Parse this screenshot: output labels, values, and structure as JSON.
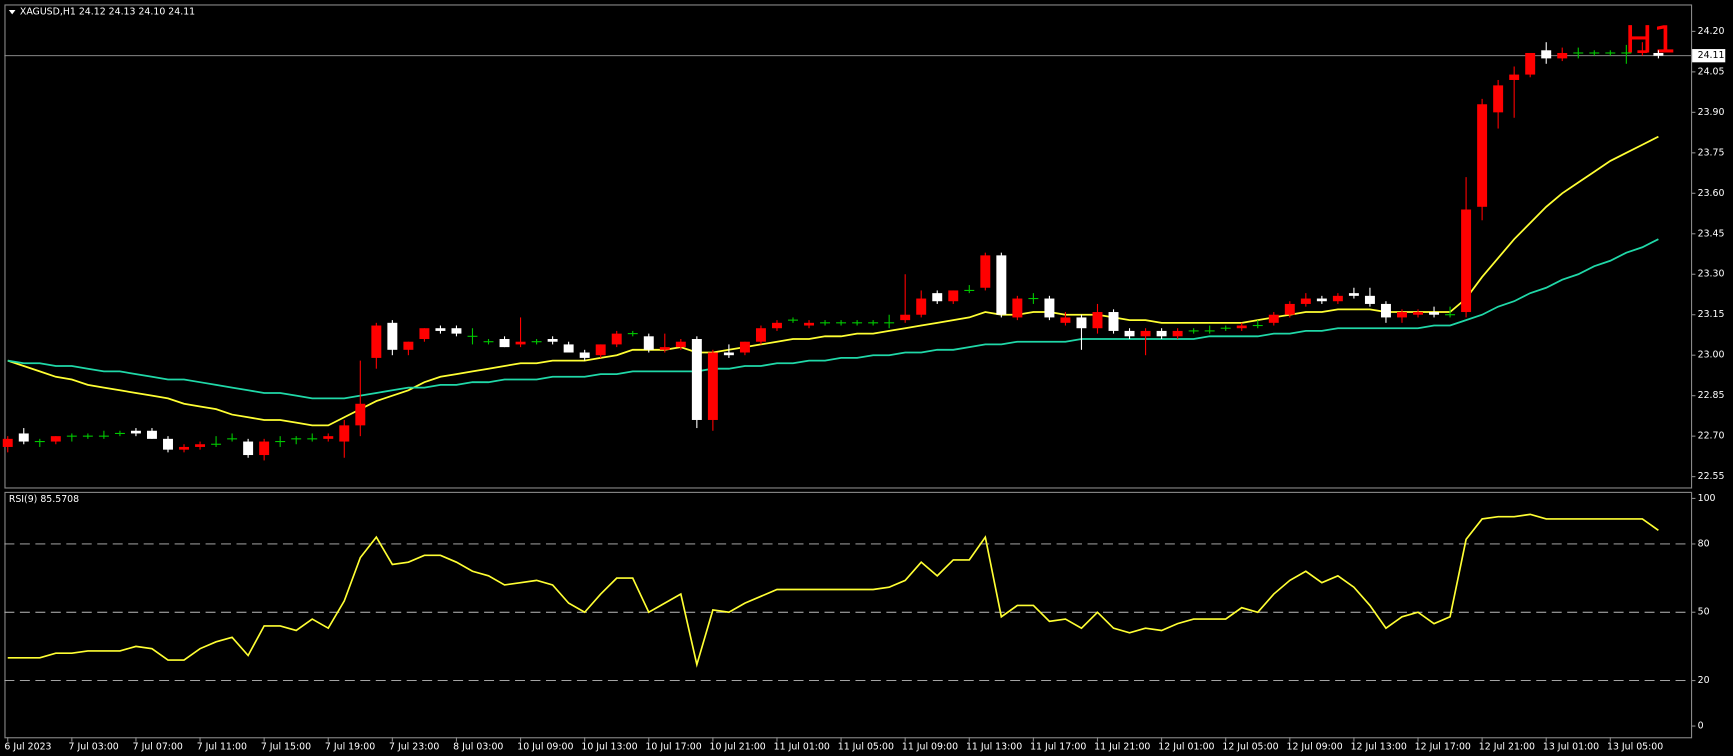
{
  "chart_data": [
    {
      "type": "candlestick",
      "title": "XAGUSD,H1  24.12 24.13 24.10 24.11",
      "annotation": "H1",
      "last_price": 24.11,
      "up_color": "#ff0000",
      "down_color": "#ffffff",
      "doji_color": "#00c800",
      "categories": [
        "6 Jul 2023",
        null,
        null,
        null,
        "7 Jul 03:00",
        null,
        null,
        null,
        "7 Jul 07:00",
        null,
        null,
        null,
        "7 Jul 11:00",
        null,
        null,
        null,
        "7 Jul 15:00",
        null,
        null,
        null,
        "7 Jul 19:00",
        null,
        null,
        null,
        "7 Jul 23:00",
        null,
        null,
        null,
        "8 Jul 03:00",
        null,
        null,
        null,
        "10 Jul 09:00",
        null,
        null,
        null,
        "10 Jul 13:00",
        null,
        null,
        null,
        "10 Jul 17:00",
        null,
        null,
        null,
        "10 Jul 21:00",
        null,
        null,
        null,
        "11 Jul 01:00",
        null,
        null,
        null,
        "11 Jul 05:00",
        null,
        null,
        null,
        "11 Jul 09:00",
        null,
        null,
        null,
        "11 Jul 13:00",
        null,
        null,
        null,
        "11 Jul 17:00",
        null,
        null,
        null,
        "11 Jul 21:00",
        null,
        null,
        null,
        "12 Jul 01:00",
        null,
        null,
        null,
        "12 Jul 05:00",
        null,
        null,
        null,
        "12 Jul 09:00",
        null,
        null,
        null,
        "12 Jul 13:00",
        null,
        null,
        null,
        "12 Jul 17:00",
        null,
        null,
        null,
        "12 Jul 21:00",
        null,
        null,
        null,
        "13 Jul 01:00",
        null,
        null,
        null,
        "13 Jul 05:00",
        null,
        null,
        null
      ],
      "open": [
        22.66,
        22.71,
        22.68,
        22.68,
        22.7,
        22.7,
        22.7,
        22.71,
        22.72,
        22.72,
        22.69,
        22.65,
        22.66,
        22.67,
        22.69,
        22.68,
        22.63,
        22.68,
        22.69,
        22.69,
        22.69,
        22.68,
        22.74,
        22.99,
        23.12,
        23.02,
        23.06,
        23.1,
        23.1,
        23.07,
        23.05,
        23.06,
        23.04,
        23.05,
        23.06,
        23.04,
        23.01,
        23.0,
        23.04,
        23.08,
        23.07,
        23.02,
        23.03,
        23.06,
        22.76,
        23.01,
        23.01,
        23.05,
        23.1,
        23.13,
        23.11,
        23.12,
        23.12,
        23.12,
        23.12,
        23.12,
        23.13,
        23.15,
        23.23,
        23.2,
        23.24,
        23.25,
        23.37,
        23.14,
        23.21,
        23.21,
        23.12,
        23.14,
        23.1,
        23.16,
        23.09,
        23.07,
        23.09,
        23.07,
        23.09,
        23.09,
        23.1,
        23.1,
        23.11,
        23.12,
        23.15,
        23.19,
        23.21,
        23.2,
        23.23,
        23.22,
        23.19,
        23.14,
        23.15,
        23.16,
        23.15,
        23.16,
        23.55,
        23.9,
        24.02,
        24.04,
        24.13,
        24.1,
        24.12,
        24.12,
        24.12,
        24.12,
        24.12,
        24.12
      ],
      "high": [
        22.7,
        22.73,
        22.69,
        22.7,
        22.71,
        22.71,
        22.72,
        22.72,
        22.73,
        22.73,
        22.7,
        22.67,
        22.68,
        22.7,
        22.71,
        22.69,
        22.69,
        22.7,
        22.7,
        22.71,
        22.71,
        22.76,
        22.98,
        23.12,
        23.13,
        23.05,
        23.1,
        23.11,
        23.11,
        23.1,
        23.06,
        23.07,
        23.14,
        23.06,
        23.07,
        23.05,
        23.02,
        23.04,
        23.09,
        23.09,
        23.08,
        23.08,
        23.06,
        23.07,
        23.02,
        23.04,
        23.05,
        23.11,
        23.13,
        23.14,
        23.13,
        23.13,
        23.13,
        23.13,
        23.13,
        23.15,
        23.3,
        23.24,
        23.24,
        23.24,
        23.26,
        23.38,
        23.38,
        23.22,
        23.23,
        23.22,
        23.16,
        23.15,
        23.19,
        23.17,
        23.1,
        23.1,
        23.1,
        23.1,
        23.1,
        23.11,
        23.11,
        23.12,
        23.13,
        23.16,
        23.2,
        23.23,
        23.22,
        23.23,
        23.25,
        23.25,
        23.2,
        23.17,
        23.17,
        23.18,
        23.18,
        23.66,
        23.95,
        24.02,
        24.07,
        24.12,
        24.16,
        24.14,
        24.14,
        24.13,
        24.13,
        24.15,
        24.16,
        24.13
      ],
      "low": [
        22.64,
        22.67,
        22.66,
        22.67,
        22.68,
        22.69,
        22.69,
        22.7,
        22.7,
        22.69,
        22.64,
        22.64,
        22.65,
        22.66,
        22.68,
        22.62,
        22.61,
        22.66,
        22.67,
        22.68,
        22.68,
        22.62,
        22.7,
        22.95,
        23.0,
        23.0,
        23.05,
        23.08,
        23.07,
        23.04,
        23.04,
        23.03,
        23.03,
        23.04,
        23.04,
        23.01,
        22.98,
        22.99,
        23.03,
        23.07,
        23.01,
        23.01,
        23.02,
        22.73,
        22.72,
        22.99,
        23.0,
        23.04,
        23.09,
        23.12,
        23.1,
        23.11,
        23.11,
        23.11,
        23.11,
        23.1,
        23.12,
        23.14,
        23.19,
        23.19,
        23.23,
        23.24,
        23.14,
        23.13,
        23.19,
        23.13,
        23.11,
        23.02,
        23.08,
        23.08,
        23.06,
        23.0,
        23.06,
        23.06,
        23.08,
        23.08,
        23.09,
        23.09,
        23.1,
        23.11,
        23.14,
        23.18,
        23.19,
        23.19,
        23.21,
        23.18,
        23.12,
        23.12,
        23.14,
        23.14,
        23.14,
        23.14,
        23.5,
        23.84,
        23.88,
        24.03,
        24.08,
        24.09,
        24.1,
        24.11,
        24.11,
        24.08,
        24.11,
        24.1
      ],
      "close": [
        22.69,
        22.68,
        22.68,
        22.7,
        22.7,
        22.7,
        22.7,
        22.71,
        22.71,
        22.69,
        22.65,
        22.66,
        22.67,
        22.67,
        22.69,
        22.63,
        22.68,
        22.68,
        22.69,
        22.69,
        22.7,
        22.74,
        22.82,
        23.11,
        23.02,
        23.05,
        23.1,
        23.09,
        23.08,
        23.07,
        23.05,
        23.03,
        23.05,
        23.05,
        23.05,
        23.01,
        22.99,
        23.04,
        23.08,
        23.08,
        23.02,
        23.03,
        23.05,
        22.76,
        23.01,
        23.0,
        23.05,
        23.1,
        23.12,
        23.13,
        23.12,
        23.12,
        23.12,
        23.12,
        23.12,
        23.12,
        23.15,
        23.21,
        23.2,
        23.24,
        23.24,
        23.37,
        23.15,
        23.21,
        23.21,
        23.14,
        23.14,
        23.1,
        23.16,
        23.09,
        23.07,
        23.09,
        23.07,
        23.09,
        23.09,
        23.09,
        23.1,
        23.11,
        23.11,
        23.15,
        23.19,
        23.21,
        23.2,
        23.22,
        23.22,
        23.19,
        23.14,
        23.16,
        23.16,
        23.15,
        23.15,
        23.54,
        23.93,
        24.0,
        24.04,
        24.12,
        24.1,
        24.12,
        24.12,
        24.12,
        24.12,
        24.12,
        24.13,
        24.11
      ],
      "series": [
        {
          "color": "#ffff33",
          "values": [
            22.98,
            22.96,
            22.94,
            22.92,
            22.91,
            22.89,
            22.88,
            22.87,
            22.86,
            22.85,
            22.84,
            22.82,
            22.81,
            22.8,
            22.78,
            22.77,
            22.76,
            22.76,
            22.75,
            22.74,
            22.74,
            22.77,
            22.8,
            22.83,
            22.85,
            22.87,
            22.9,
            22.92,
            22.93,
            22.94,
            22.95,
            22.96,
            22.97,
            22.97,
            22.98,
            22.98,
            22.98,
            22.99,
            23.0,
            23.02,
            23.02,
            23.02,
            23.03,
            23.01,
            23.01,
            23.02,
            23.03,
            23.04,
            23.05,
            23.06,
            23.06,
            23.07,
            23.07,
            23.08,
            23.08,
            23.09,
            23.1,
            23.11,
            23.12,
            23.13,
            23.14,
            23.16,
            23.15,
            23.15,
            23.16,
            23.16,
            23.15,
            23.15,
            23.15,
            23.14,
            23.13,
            23.13,
            23.12,
            23.12,
            23.12,
            23.12,
            23.12,
            23.12,
            23.13,
            23.14,
            23.15,
            23.16,
            23.16,
            23.17,
            23.17,
            23.17,
            23.16,
            23.16,
            23.16,
            23.16,
            23.16,
            23.21,
            23.29,
            23.36,
            23.43,
            23.49,
            23.55,
            23.6,
            23.64,
            23.68,
            23.72,
            23.75,
            23.78,
            23.81
          ]
        },
        {
          "color": "#20d8a8",
          "values": [
            22.98,
            22.97,
            22.97,
            22.96,
            22.96,
            22.95,
            22.94,
            22.94,
            22.93,
            22.92,
            22.91,
            22.91,
            22.9,
            22.89,
            22.88,
            22.87,
            22.86,
            22.86,
            22.85,
            22.84,
            22.84,
            22.84,
            22.85,
            22.86,
            22.87,
            22.88,
            22.88,
            22.89,
            22.89,
            22.9,
            22.9,
            22.91,
            22.91,
            22.91,
            22.92,
            22.92,
            22.92,
            22.93,
            22.93,
            22.94,
            22.94,
            22.94,
            22.94,
            22.94,
            22.95,
            22.95,
            22.96,
            22.96,
            22.97,
            22.97,
            22.98,
            22.98,
            22.99,
            22.99,
            23.0,
            23.0,
            23.01,
            23.01,
            23.02,
            23.02,
            23.03,
            23.04,
            23.04,
            23.05,
            23.05,
            23.05,
            23.05,
            23.06,
            23.06,
            23.06,
            23.06,
            23.06,
            23.06,
            23.06,
            23.06,
            23.07,
            23.07,
            23.07,
            23.07,
            23.08,
            23.08,
            23.09,
            23.09,
            23.1,
            23.1,
            23.1,
            23.1,
            23.1,
            23.1,
            23.11,
            23.11,
            23.13,
            23.15,
            23.18,
            23.2,
            23.23,
            23.25,
            23.28,
            23.3,
            23.33,
            23.35,
            23.38,
            23.4,
            23.43
          ]
        }
      ],
      "ylim": [
        22.51,
        24.3
      ],
      "yticks": [
        {
          "value": 24.2,
          "label": "24.20"
        },
        24.05,
        {
          "value": 23.9,
          "label": "23.90"
        },
        23.75,
        {
          "value": 23.6,
          "label": "23.60"
        },
        23.45,
        {
          "value": 23.3,
          "label": "23.30"
        },
        23.15,
        {
          "value": 23.0,
          "label": "23.00"
        },
        22.85,
        {
          "value": 22.7,
          "label": "22.70"
        },
        22.55
      ]
    },
    {
      "type": "line",
      "title": "RSI(9) 85.5708",
      "color": "#ffff33",
      "values": [
        30,
        30,
        30,
        32,
        32,
        33,
        33,
        33,
        35,
        34,
        29,
        29,
        34,
        37,
        39,
        31,
        44,
        44,
        42,
        47,
        43,
        55,
        74,
        83,
        71,
        72,
        75,
        75,
        72,
        68,
        66,
        62,
        63,
        64,
        62,
        54,
        50,
        58,
        65,
        65,
        50,
        54,
        58,
        27,
        51,
        50,
        54,
        57,
        60,
        60,
        60,
        60,
        60,
        60,
        60,
        61,
        64,
        72,
        66,
        73,
        73,
        83,
        48,
        53,
        53,
        46,
        47,
        43,
        50,
        43,
        41,
        43,
        42,
        45,
        47,
        47,
        47,
        52,
        50,
        58,
        64,
        68,
        63,
        66,
        61,
        53,
        43,
        48,
        50,
        45,
        48,
        82,
        91,
        92,
        92,
        93,
        91,
        91,
        91,
        91,
        91,
        91,
        91,
        86
      ],
      "ylim": [
        -4.9,
        102.9
      ],
      "yticks": [
        100,
        80,
        50,
        20,
        0
      ],
      "levels": [
        80,
        50,
        20
      ]
    }
  ]
}
